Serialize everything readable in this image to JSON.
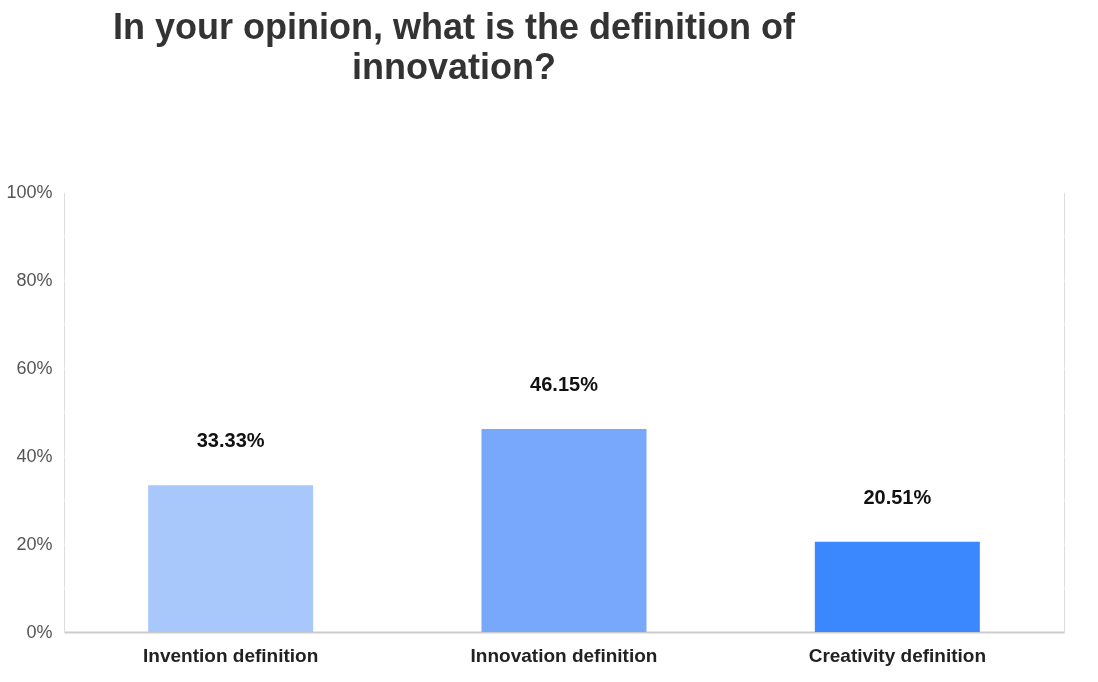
{
  "chart_data": {
    "type": "bar",
    "title": "In your opinion, what is the definition of innovation?",
    "categories": [
      "Invention definition",
      "Innovation definition",
      "Creativity definition"
    ],
    "values": [
      33.33,
      46.15,
      20.51
    ],
    "colors": [
      "#a8c7fb",
      "#77a8fb",
      "#3b88fe"
    ],
    "value_labels": [
      "33.33%",
      "46.15%",
      "20.51%"
    ],
    "ylim": [
      0,
      100
    ],
    "yticks": [
      {
        "value": 0,
        "label": "0%"
      },
      {
        "value": 10,
        "label": null
      },
      {
        "value": 20,
        "label": "20%"
      },
      {
        "value": 30,
        "label": null
      },
      {
        "value": 40,
        "label": "40%"
      },
      {
        "value": 50,
        "label": null
      },
      {
        "value": 60,
        "label": "60%"
      },
      {
        "value": 70,
        "label": null
      },
      {
        "value": 80,
        "label": "80%"
      },
      {
        "value": 90,
        "label": null
      },
      {
        "value": 100,
        "label": "100%"
      }
    ],
    "grid": "y",
    "legend": false
  }
}
